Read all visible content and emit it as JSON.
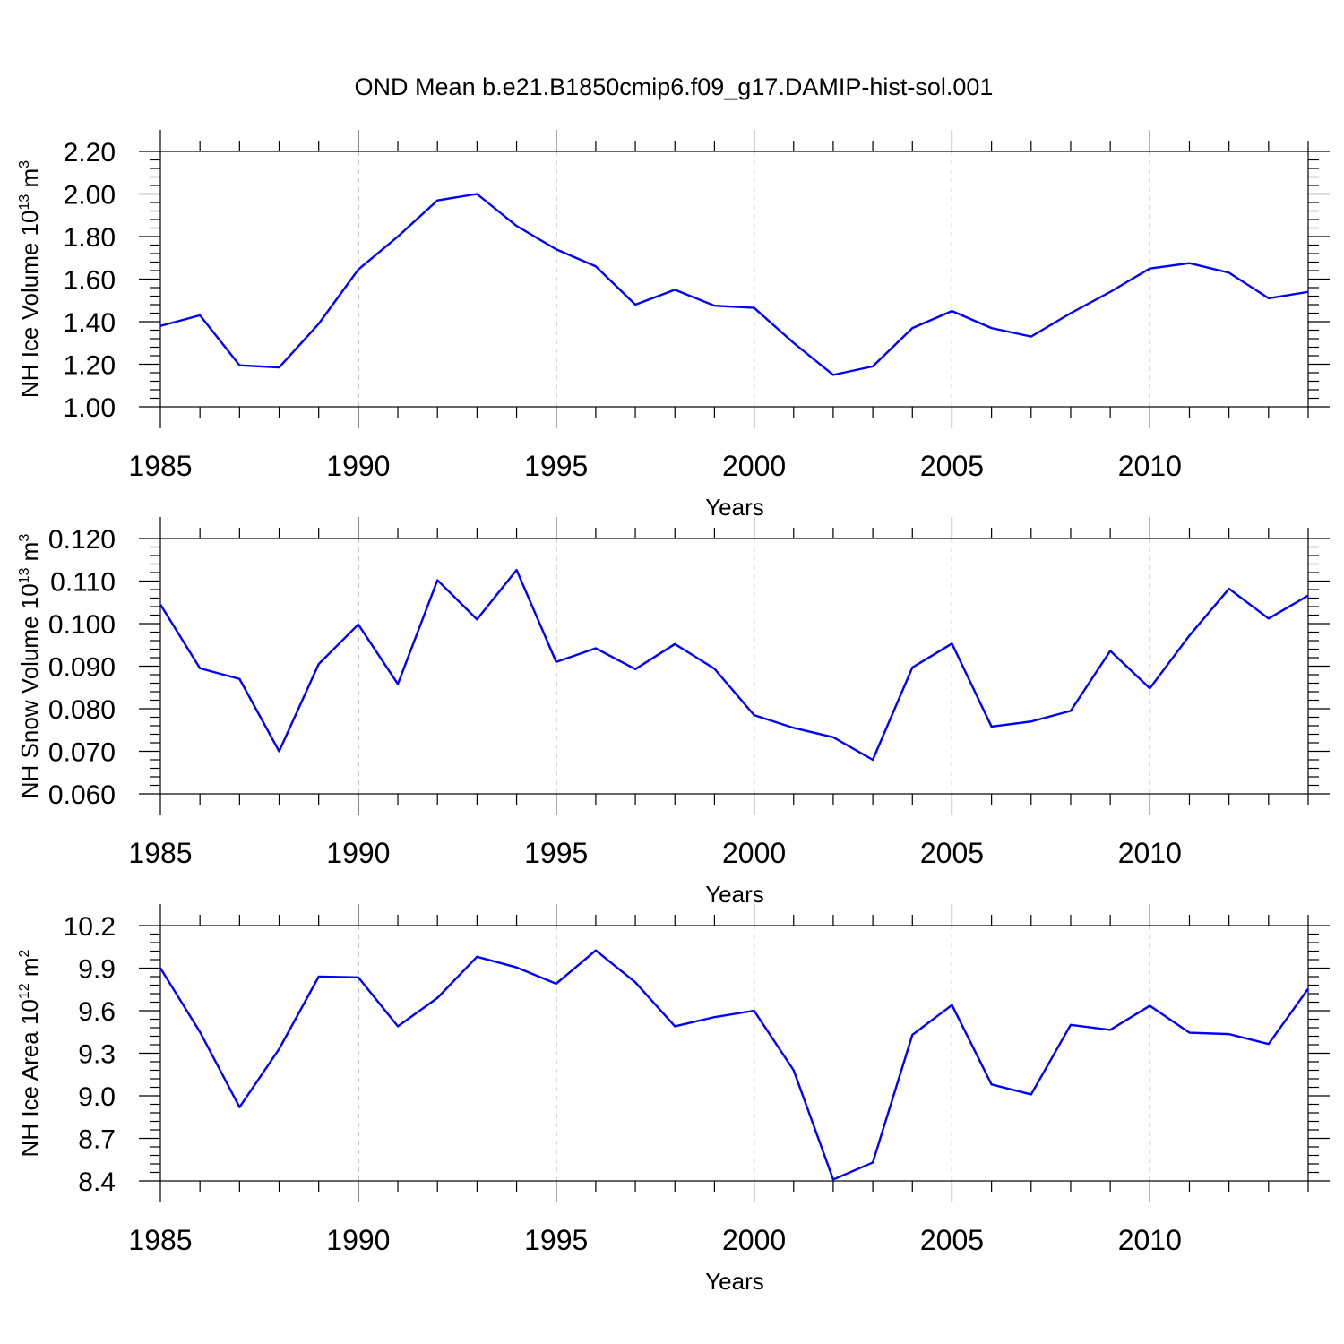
{
  "figure_title": "OND Mean b.e21.B1850cmip6.f09_g17.DAMIP-hist-sol.001",
  "line_color": "#0000ff",
  "chart_data": [
    {
      "type": "line",
      "title": "",
      "xlabel": "Years",
      "ylabel": "NH Ice Volume 10",
      "ylabel_exp": "13",
      "ylabel_unit": " m",
      "ylabel_unit_exp": "3",
      "xlim": [
        1985,
        2014
      ],
      "ylim": [
        1.0,
        2.2
      ],
      "yticks": [
        1.0,
        1.2,
        1.4,
        1.6,
        1.8,
        2.0,
        2.2
      ],
      "ytick_labels": [
        "1.00",
        "1.20",
        "1.40",
        "1.60",
        "1.80",
        "2.00",
        "2.20"
      ],
      "y_minor_step": 0.04,
      "xticks": [
        1985,
        1990,
        1995,
        2000,
        2005,
        2010
      ],
      "xtick_labels": [
        "1985",
        "1990",
        "1995",
        "2000",
        "2005",
        "2010"
      ],
      "grid": "vertical dashed at major x ticks",
      "x": [
        1985,
        1986,
        1987,
        1988,
        1989,
        1990,
        1991,
        1992,
        1993,
        1994,
        1995,
        1996,
        1997,
        1998,
        1999,
        2000,
        2001,
        2002,
        2003,
        2004,
        2005,
        2006,
        2007,
        2008,
        2009,
        2010,
        2011,
        2012,
        2013,
        2014
      ],
      "series": [
        {
          "name": "NH Ice Volume",
          "values": [
            1.38,
            1.43,
            1.195,
            1.185,
            1.39,
            1.645,
            1.8,
            1.97,
            2.0,
            1.85,
            1.74,
            1.66,
            1.48,
            1.55,
            1.475,
            1.465,
            1.3,
            1.15,
            1.19,
            1.37,
            1.45,
            1.37,
            1.33,
            1.44,
            1.54,
            1.65,
            1.675,
            1.63,
            1.51,
            1.54
          ]
        }
      ]
    },
    {
      "type": "line",
      "title": "",
      "xlabel": "Years",
      "ylabel": "NH Snow Volume 10",
      "ylabel_exp": "13",
      "ylabel_unit": " m",
      "ylabel_unit_exp": "3",
      "xlim": [
        1985,
        2014
      ],
      "ylim": [
        0.06,
        0.12
      ],
      "yticks": [
        0.06,
        0.07,
        0.08,
        0.09,
        0.1,
        0.11,
        0.12
      ],
      "ytick_labels": [
        "0.060",
        "0.070",
        "0.080",
        "0.090",
        "0.100",
        "0.110",
        "0.120"
      ],
      "y_minor_step": 0.002,
      "xticks": [
        1985,
        1990,
        1995,
        2000,
        2005,
        2010
      ],
      "xtick_labels": [
        "1985",
        "1990",
        "1995",
        "2000",
        "2005",
        "2010"
      ],
      "grid": "vertical dashed at major x ticks",
      "x": [
        1985,
        1986,
        1987,
        1988,
        1989,
        1990,
        1991,
        1992,
        1993,
        1994,
        1995,
        1996,
        1997,
        1998,
        1999,
        2000,
        2001,
        2002,
        2003,
        2004,
        2005,
        2006,
        2007,
        2008,
        2009,
        2010,
        2011,
        2012,
        2013,
        2014
      ],
      "series": [
        {
          "name": "NH Snow Volume",
          "values": [
            0.1045,
            0.0895,
            0.087,
            0.07,
            0.0905,
            0.0998,
            0.0858,
            0.1102,
            0.101,
            0.1126,
            0.091,
            0.0942,
            0.0893,
            0.0952,
            0.0894,
            0.0785,
            0.0755,
            0.0733,
            0.068,
            0.0897,
            0.0953,
            0.0758,
            0.077,
            0.0795,
            0.0936,
            0.0848,
            0.0972,
            0.1082,
            0.1012,
            0.1066
          ]
        }
      ]
    },
    {
      "type": "line",
      "title": "",
      "xlabel": "Years",
      "ylabel": "NH Ice Area 10",
      "ylabel_exp": "12",
      "ylabel_unit": " m",
      "ylabel_unit_exp": "2",
      "xlim": [
        1985,
        2014
      ],
      "ylim": [
        8.4,
        10.2
      ],
      "yticks": [
        8.4,
        8.7,
        9.0,
        9.3,
        9.6,
        9.9,
        10.2
      ],
      "ytick_labels": [
        "8.4",
        "8.7",
        "9.0",
        "9.3",
        "9.6",
        "9.9",
        "10.2"
      ],
      "y_minor_step": 0.06,
      "xticks": [
        1985,
        1990,
        1995,
        2000,
        2005,
        2010
      ],
      "xtick_labels": [
        "1985",
        "1990",
        "1995",
        "2000",
        "2005",
        "2010"
      ],
      "grid": "vertical dashed at major x ticks",
      "x": [
        1985,
        1986,
        1987,
        1988,
        1989,
        1990,
        1991,
        1992,
        1993,
        1994,
        1995,
        1996,
        1997,
        1998,
        1999,
        2000,
        2001,
        2002,
        2003,
        2004,
        2005,
        2006,
        2007,
        2008,
        2009,
        2010,
        2011,
        2012,
        2013,
        2014
      ],
      "series": [
        {
          "name": "NH Ice Area",
          "values": [
            9.9,
            9.45,
            8.92,
            9.33,
            9.84,
            9.835,
            9.49,
            9.69,
            9.98,
            9.905,
            9.79,
            10.025,
            9.8,
            9.49,
            9.555,
            9.6,
            9.18,
            8.41,
            8.53,
            9.43,
            9.64,
            9.08,
            9.01,
            9.5,
            9.465,
            9.635,
            9.445,
            9.435,
            9.365,
            9.755
          ]
        }
      ]
    }
  ]
}
